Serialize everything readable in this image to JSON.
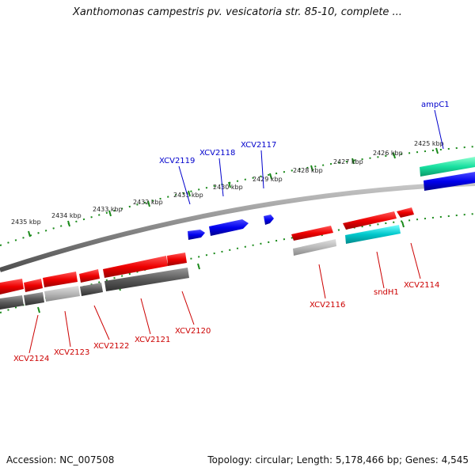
{
  "title": "Xanthomonas campestris pv. vesicatoria str. 85-10, complete ...",
  "footer": {
    "accession": "Accession: NC_007508",
    "topology": "Topology: circular; Length: 5,178,466 bp; Genes: 4,545"
  },
  "ticks": [
    {
      "label": "2425 kbp"
    },
    {
      "label": "2426 kbp"
    },
    {
      "label": "2427 kbp"
    },
    {
      "label": "2428 kbp"
    },
    {
      "label": "2429 kbp"
    },
    {
      "label": "2430 kbp"
    },
    {
      "label": "2431 kbp"
    },
    {
      "label": "2432 kbp"
    },
    {
      "label": "2433 kbp"
    },
    {
      "label": "2434 kbp"
    },
    {
      "label": "2435 kbp"
    }
  ],
  "genes_forward": [
    {
      "label": "ampC1",
      "color": "#0000cc"
    },
    {
      "label": "XCV2117",
      "color": "#0000cc"
    },
    {
      "label": "XCV2118",
      "color": "#0000cc"
    },
    {
      "label": "XCV2119",
      "color": "#0000cc"
    }
  ],
  "genes_reverse": [
    {
      "label": "XCV2114",
      "color": "#cc0000"
    },
    {
      "label": "sndH1",
      "color": "#cc0000"
    },
    {
      "label": "XCV2116",
      "color": "#cc0000"
    },
    {
      "label": "XCV2120",
      "color": "#cc0000"
    },
    {
      "label": "XCV2121",
      "color": "#cc0000"
    },
    {
      "label": "XCV2122",
      "color": "#cc0000"
    },
    {
      "label": "XCV2123",
      "color": "#cc0000"
    },
    {
      "label": "XCV2124",
      "color": "#cc0000"
    }
  ],
  "colors": {
    "forward_gene": "#0000ee",
    "reverse_gene": "#ee0000",
    "tick": "#1a8a1a",
    "backbone": "#808080",
    "rna_cyan": "#00c8cc",
    "rna_green": "#19e0a0"
  }
}
